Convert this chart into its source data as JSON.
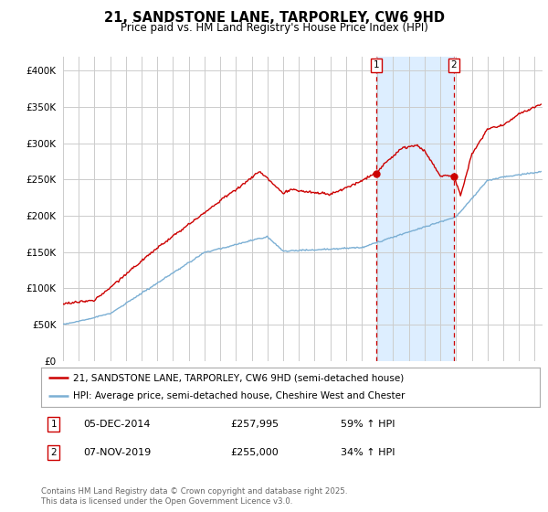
{
  "title": "21, SANDSTONE LANE, TARPORLEY, CW6 9HD",
  "subtitle": "Price paid vs. HM Land Registry's House Price Index (HPI)",
  "ylim": [
    0,
    420000
  ],
  "yticks": [
    0,
    50000,
    100000,
    150000,
    200000,
    250000,
    300000,
    350000,
    400000
  ],
  "ytick_labels": [
    "£0",
    "£50K",
    "£100K",
    "£150K",
    "£200K",
    "£250K",
    "£300K",
    "£350K",
    "£400K"
  ],
  "xlim_start": 1995.0,
  "xlim_end": 2025.5,
  "sale1_date": 2014.92,
  "sale1_price": 257995,
  "sale1_label": "1",
  "sale2_date": 2019.85,
  "sale2_price": 255000,
  "sale2_label": "2",
  "annotation1_date": "05-DEC-2014",
  "annotation1_price": "£257,995",
  "annotation1_hpi": "59% ↑ HPI",
  "annotation2_date": "07-NOV-2019",
  "annotation2_price": "£255,000",
  "annotation2_hpi": "34% ↑ HPI",
  "legend1": "21, SANDSTONE LANE, TARPORLEY, CW6 9HD (semi-detached house)",
  "legend2": "HPI: Average price, semi-detached house, Cheshire West and Chester",
  "footnote": "Contains HM Land Registry data © Crown copyright and database right 2025.\nThis data is licensed under the Open Government Licence v3.0.",
  "line1_color": "#cc0000",
  "line2_color": "#7bafd4",
  "shade_color": "#ddeeff",
  "grid_color": "#cccccc",
  "bg_color": "#ffffff",
  "box_edge_color": "#cc0000"
}
